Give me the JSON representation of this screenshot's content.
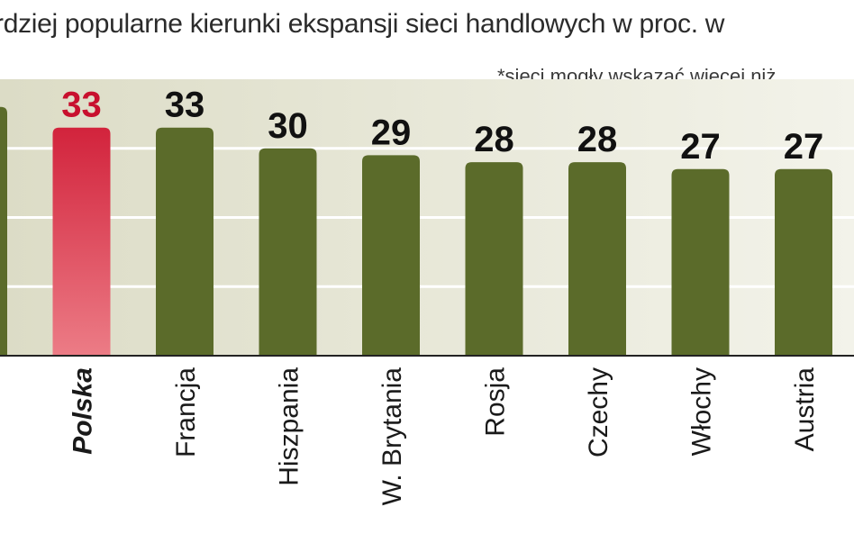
{
  "chart_data": {
    "type": "bar",
    "title": "rdziej popularne kierunki ekspansji sieci handlowych w proc. w",
    "note": "*sieci mogły wskazać wiecej niż",
    "categories": [
      "",
      "Polska",
      "Francja",
      "Hiszpania",
      "W. Brytania",
      "Rosja",
      "Czechy",
      "Włochy",
      "Austria"
    ],
    "values": [
      36,
      33,
      33,
      30,
      29,
      28,
      28,
      27,
      27
    ],
    "value_labels": [
      "",
      "33",
      "33",
      "30",
      "29",
      "28",
      "28",
      "27",
      "27"
    ],
    "highlight_category": "Polska",
    "ylim": [
      0,
      40
    ],
    "grid": true,
    "legend": "none",
    "colors": {
      "bar": "#5b6b2a",
      "bar_top": "#4a5a20",
      "highlight": "#d2233c",
      "highlight_light": "#ec7c86",
      "highlight_label": "#c8102e",
      "label": "#111111",
      "band_top": "#dcdcc6",
      "band_bottom": "#f3f3ea",
      "gridline": "#ffffff",
      "baseline": "#222222"
    }
  }
}
